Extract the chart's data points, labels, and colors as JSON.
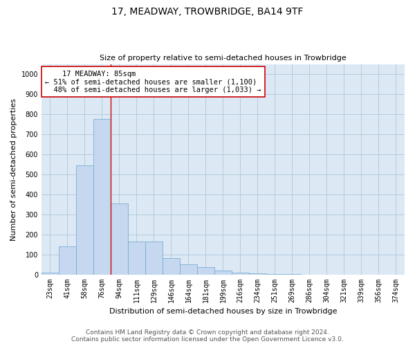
{
  "title": "17, MEADWAY, TROWBRIDGE, BA14 9TF",
  "subtitle": "Size of property relative to semi-detached houses in Trowbridge",
  "xlabel": "Distribution of semi-detached houses by size in Trowbridge",
  "ylabel": "Number of semi-detached properties",
  "categories": [
    "23sqm",
    "41sqm",
    "58sqm",
    "76sqm",
    "94sqm",
    "111sqm",
    "129sqm",
    "146sqm",
    "164sqm",
    "181sqm",
    "199sqm",
    "216sqm",
    "234sqm",
    "251sqm",
    "269sqm",
    "286sqm",
    "304sqm",
    "321sqm",
    "339sqm",
    "356sqm",
    "374sqm"
  ],
  "values": [
    10,
    140,
    545,
    775,
    355,
    165,
    165,
    80,
    50,
    35,
    20,
    10,
    5,
    2,
    1,
    0,
    0,
    0,
    0,
    0,
    0
  ],
  "bar_color": "#c5d8ef",
  "bar_edgecolor": "#7aadd4",
  "ylim": [
    0,
    1050
  ],
  "yticks": [
    0,
    100,
    200,
    300,
    400,
    500,
    600,
    700,
    800,
    900,
    1000
  ],
  "property_label": "17 MEADWAY: 85sqm",
  "pct_smaller": 51,
  "pct_larger": 48,
  "count_smaller": 1100,
  "count_larger": 1033,
  "vline_x": 3.5,
  "annotation_box_color": "#ffffff",
  "annotation_box_edgecolor": "#cc0000",
  "footer_line1": "Contains HM Land Registry data © Crown copyright and database right 2024.",
  "footer_line2": "Contains public sector information licensed under the Open Government Licence v3.0.",
  "background_color": "#ffffff",
  "plot_bg_color": "#dce9f5",
  "grid_color": "#b0c4d8",
  "title_fontsize": 10,
  "subtitle_fontsize": 8,
  "ylabel_fontsize": 8,
  "xlabel_fontsize": 8,
  "tick_fontsize": 7,
  "footer_fontsize": 6.5,
  "ann_fontsize": 7.5
}
